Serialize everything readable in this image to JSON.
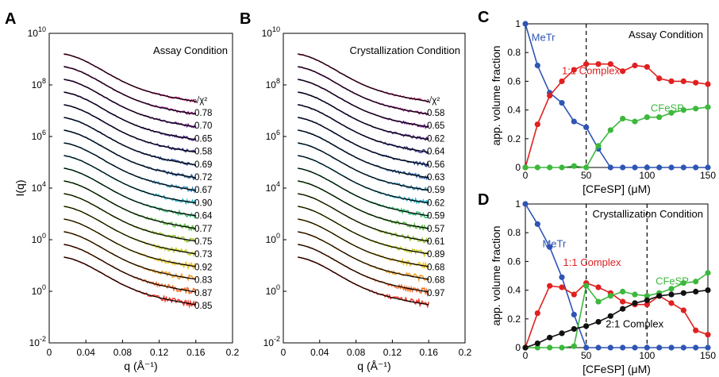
{
  "figure": {
    "panels": [
      "A",
      "B",
      "C",
      "D"
    ]
  },
  "chart_data": [
    {
      "panel": "A",
      "type": "line",
      "title": "Assay Condition",
      "xlabel": "q (Å⁻¹)",
      "ylabel": "I(q)",
      "xlim": [
        0,
        0.2
      ],
      "x_ticks": [
        "0",
        "0.04",
        "0.08",
        "0.12",
        "0.16",
        "0.2"
      ],
      "y_scale": "log",
      "y_ticks": [
        {
          "base": "10",
          "exp": "10"
        },
        {
          "base": "10",
          "exp": "8"
        },
        {
          "base": "10",
          "exp": "6"
        },
        {
          "base": "10",
          "exp": "4"
        },
        {
          "base": "10",
          "exp": "0"
        },
        {
          "base": "10",
          "exp": "0"
        },
        {
          "base": "10",
          "exp": "-2"
        }
      ],
      "q_range": [
        0.016,
        0.16
      ],
      "series_count": 17,
      "fit_color": "#000000",
      "data_colors": [
        "#cc1f7a",
        "#a0188c",
        "#7a1f96",
        "#5a2a9a",
        "#3c3b9c",
        "#2c4f9f",
        "#2e64a8",
        "#3a8fc0",
        "#34b3c8",
        "#3fbf7a",
        "#62c04a",
        "#9ac63b",
        "#c9cf32",
        "#e9c22e",
        "#f2a02c",
        "#ee6a28",
        "#e8362a"
      ],
      "chi_label": "√χ²",
      "chi_values": [
        "0.78",
        "0.70",
        "0.65",
        "0.58",
        "0.69",
        "0.72",
        "0.67",
        "0.90",
        "0.64",
        "0.77",
        "0.75",
        "0.73",
        "0.92",
        "0.83",
        "0.87",
        "0.85"
      ]
    },
    {
      "panel": "B",
      "type": "line",
      "title": "Crystallization Condition",
      "xlabel": "q (Å⁻¹)",
      "ylabel": "",
      "xlim": [
        0,
        0.2
      ],
      "x_ticks": [
        "0",
        "0.04",
        "0.08",
        "0.12",
        "0.16",
        "0.2"
      ],
      "y_scale": "log",
      "y_ticks": [
        {
          "base": "10",
          "exp": "10"
        },
        {
          "base": "10",
          "exp": "8"
        },
        {
          "base": "10",
          "exp": "6"
        },
        {
          "base": "10",
          "exp": "4"
        },
        {
          "base": "10",
          "exp": "0"
        },
        {
          "base": "10",
          "exp": "0"
        },
        {
          "base": "10",
          "exp": "-2"
        }
      ],
      "q_range": [
        0.016,
        0.16
      ],
      "series_count": 17,
      "fit_color": "#000000",
      "data_colors": [
        "#cc1f7a",
        "#a0188c",
        "#7a1f96",
        "#5a2a9a",
        "#3c3b9c",
        "#2c4f9f",
        "#2e64a8",
        "#3a8fc0",
        "#34b3c8",
        "#3fbf7a",
        "#62c04a",
        "#9ac63b",
        "#c9cf32",
        "#e9c22e",
        "#f2a02c",
        "#ee6a28",
        "#e8362a"
      ],
      "chi_label": "√χ²",
      "chi_values": [
        "0.58",
        "0.65",
        "0.62",
        "0.64",
        "0.56",
        "0.63",
        "0.59",
        "0.62",
        "0.59",
        "0.57",
        "0.61",
        "0.89",
        "0.68",
        "0.68",
        "0.97"
      ]
    },
    {
      "panel": "C",
      "type": "line",
      "title": "Assay Condition",
      "xlabel": "[CFeSP] (μM)",
      "ylabel": "app. volume fraction",
      "xlim": [
        0,
        150
      ],
      "ylim": [
        0,
        1
      ],
      "x_ticks": [
        0,
        50,
        100,
        150
      ],
      "y_ticks": [
        0,
        0.2,
        0.4,
        0.6,
        0.8,
        1
      ],
      "vlines": [
        50
      ],
      "x": [
        0,
        10,
        20,
        30,
        40,
        50,
        60,
        70,
        80,
        90,
        100,
        110,
        120,
        130,
        140,
        150
      ],
      "series": [
        {
          "name": "MeTr",
          "color": "#2f55b4",
          "label_at": [
            5,
            0.88
          ],
          "values": [
            1.0,
            0.71,
            0.52,
            0.45,
            0.32,
            0.28,
            0.13,
            0.0,
            0.0,
            0.0,
            0.0,
            0.0,
            0.0,
            0.0,
            0.0,
            0.0
          ]
        },
        {
          "name": "1:1 Complex",
          "color": "#e02020",
          "label_at": [
            30,
            0.65
          ],
          "values": [
            0.0,
            0.3,
            0.5,
            0.6,
            0.68,
            0.72,
            0.72,
            0.72,
            0.67,
            0.71,
            0.7,
            0.62,
            0.6,
            0.6,
            0.59,
            0.58
          ]
        },
        {
          "name": "CFeSP",
          "color": "#3cb83c",
          "label_at": [
            103,
            0.39
          ],
          "values": [
            0.0,
            0.0,
            0.0,
            0.0,
            0.01,
            0.0,
            0.15,
            0.26,
            0.34,
            0.32,
            0.35,
            0.35,
            0.38,
            0.4,
            0.41,
            0.42
          ]
        }
      ]
    },
    {
      "panel": "D",
      "type": "line",
      "title": "Crystallization Condition",
      "xlabel": "[CFeSP] (μM)",
      "ylabel": "app. volume fraction",
      "xlim": [
        0,
        150
      ],
      "ylim": [
        0,
        1
      ],
      "x_ticks": [
        0,
        50,
        100,
        150
      ],
      "y_ticks": [
        0,
        0.2,
        0.4,
        0.6,
        0.8,
        1
      ],
      "vlines": [
        50,
        100
      ],
      "x": [
        0,
        10,
        20,
        30,
        40,
        50,
        60,
        70,
        80,
        90,
        100,
        110,
        120,
        130,
        140,
        150
      ],
      "series": [
        {
          "name": "MeTr",
          "color": "#2f55b4",
          "label_at": [
            14,
            0.7
          ],
          "values": [
            1.0,
            0.86,
            0.7,
            0.49,
            0.23,
            0.0,
            0.0,
            0.0,
            0.0,
            0.0,
            0.0,
            0.0,
            0.0,
            0.0,
            0.0,
            0.0
          ]
        },
        {
          "name": "1:1 Complex",
          "color": "#e02020",
          "label_at": [
            31,
            0.57
          ],
          "values": [
            0.0,
            0.24,
            0.43,
            0.42,
            0.37,
            0.45,
            0.42,
            0.38,
            0.32,
            0.3,
            0.3,
            0.36,
            0.31,
            0.26,
            0.12,
            0.09
          ]
        },
        {
          "name": "CFeSP",
          "color": "#3cb83c",
          "label_at": [
            107,
            0.44
          ],
          "values": [
            0.0,
            0.0,
            0.0,
            0.0,
            0.01,
            0.43,
            0.32,
            0.36,
            0.39,
            0.37,
            0.36,
            0.38,
            0.41,
            0.45,
            0.46,
            0.52
          ]
        },
        {
          "name": "2:1 Complex",
          "color": "#111111",
          "label_at": [
            66,
            0.14
          ],
          "values": [
            0.0,
            0.03,
            0.07,
            0.1,
            0.13,
            0.15,
            0.18,
            0.22,
            0.27,
            0.31,
            0.33,
            0.36,
            0.37,
            0.38,
            0.39,
            0.4
          ]
        }
      ]
    }
  ]
}
